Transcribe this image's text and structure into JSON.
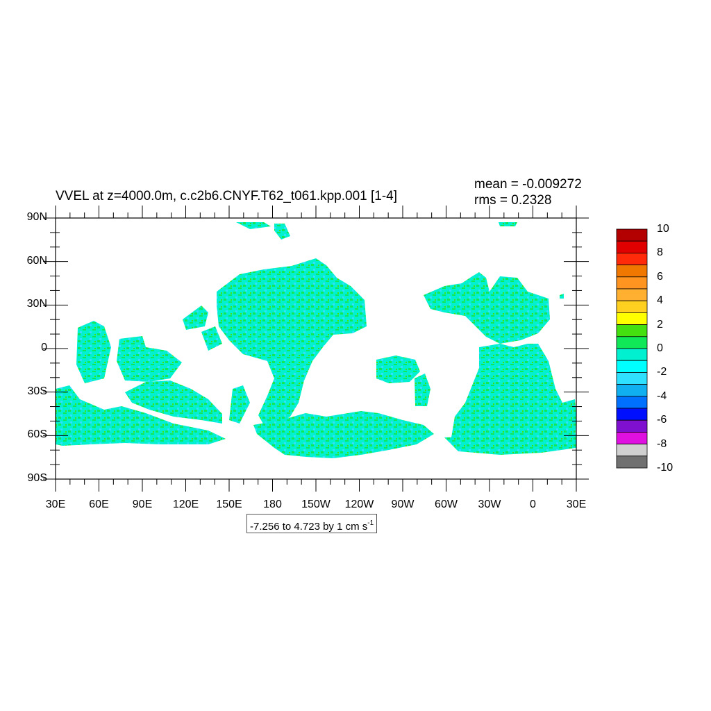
{
  "title": "VVEL at z=4000.0m, c.c2b6.CNYF.T62_t061.kpp.001 [1-4]",
  "stats": {
    "mean": "mean = -0.009272",
    "rms": "rms = 0.2328"
  },
  "range_label": "-7.256 to 4.723 by 1 cm s",
  "range_unit_exponent": "-1",
  "map": {
    "lat_labels": [
      "90N",
      "60N",
      "30N",
      "0",
      "30S",
      "60S",
      "90S"
    ],
    "lon_labels": [
      "30E",
      "60E",
      "90E",
      "120E",
      "150E",
      "180",
      "150W",
      "120W",
      "90W",
      "60W",
      "30W",
      "0",
      "30E"
    ],
    "projection": "cylindrical equidistant",
    "lon_range": [
      30,
      390
    ],
    "lat_range": [
      -90,
      90
    ]
  },
  "colorbar": {
    "labels": [
      "10",
      "8",
      "6",
      "4",
      "2",
      "0",
      "-2",
      "-4",
      "-6",
      "-8",
      "-10"
    ],
    "colors_top_to_bottom": [
      "#b30000",
      "#e00000",
      "#ff2a0a",
      "#f07800",
      "#ff9420",
      "#ffb030",
      "#ffd020",
      "#ffff00",
      "#44e010",
      "#10e858",
      "#00f0d0",
      "#00ffff",
      "#30e0ff",
      "#10b0f0",
      "#0070ff",
      "#0010ff",
      "#8010d0",
      "#e010e0",
      "#d0d0d0",
      "#707070"
    ]
  },
  "palette": {
    "ocean_main": "#00f0d0",
    "ocean_pos": "#10e858",
    "ocean_neg": "#30e0ff",
    "ocean_strong_pos": "#44e010",
    "land": "#ffffff"
  }
}
